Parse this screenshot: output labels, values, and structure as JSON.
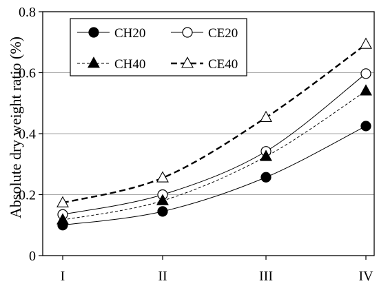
{
  "chart_data": {
    "type": "line",
    "categories": [
      "I",
      "II",
      "III",
      "IV"
    ],
    "ylabel": "Absolute dry weight ratio (%)",
    "xlabel": "",
    "ylim": [
      0,
      0.8
    ],
    "yticks": [
      "0",
      "0.2",
      "0.4",
      "0.6",
      "0.8"
    ],
    "grid": "horizontal",
    "legend_position": "top-left",
    "series": [
      {
        "name": "CH20",
        "values": [
          0.1,
          0.145,
          0.257,
          0.425
        ],
        "marker": "circle-filled",
        "line": "solid",
        "color": "#000000"
      },
      {
        "name": "CE20",
        "values": [
          0.135,
          0.2,
          0.342,
          0.597
        ],
        "marker": "circle-open",
        "line": "solid",
        "color": "#000000"
      },
      {
        "name": "CH40",
        "values": [
          0.117,
          0.18,
          0.325,
          0.54
        ],
        "marker": "triangle-filled",
        "line": "dotted",
        "color": "#000000"
      },
      {
        "name": "CE40",
        "values": [
          0.173,
          0.255,
          0.453,
          0.693
        ],
        "marker": "triangle-open",
        "line": "dashed",
        "color": "#000000"
      }
    ]
  }
}
